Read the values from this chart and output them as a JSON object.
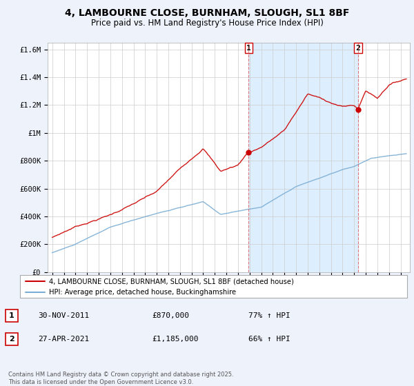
{
  "title_line1": "4, LAMBOURNE CLOSE, BURNHAM, SLOUGH, SL1 8BF",
  "title_line2": "Price paid vs. HM Land Registry's House Price Index (HPI)",
  "background_color": "#eef2fb",
  "plot_bg_color": "#ffffff",
  "red_color": "#cc0000",
  "blue_color": "#7aadd4",
  "shade_color": "#ddeeff",
  "marker1_yr": 2011.917,
  "marker1_price": 870000,
  "marker2_yr": 2021.333,
  "marker2_price": 1185000,
  "legend_line1": "4, LAMBOURNE CLOSE, BURNHAM, SLOUGH, SL1 8BF (detached house)",
  "legend_line2": "HPI: Average price, detached house, Buckinghamshire",
  "annotation1_date": "30-NOV-2011",
  "annotation1_price": "£870,000",
  "annotation1_hpi": "77% ↑ HPI",
  "annotation2_date": "27-APR-2021",
  "annotation2_price": "£1,185,000",
  "annotation2_hpi": "66% ↑ HPI",
  "footer": "Contains HM Land Registry data © Crown copyright and database right 2025.\nThis data is licensed under the Open Government Licence v3.0.",
  "ylim_max": 1650000,
  "yticks": [
    0,
    200000,
    400000,
    600000,
    800000,
    1000000,
    1200000,
    1400000,
    1600000
  ],
  "ytick_labels": [
    "£0",
    "£200K",
    "£400K",
    "£600K",
    "£800K",
    "£1M",
    "£1.2M",
    "£1.4M",
    "£1.6M"
  ],
  "xmin": 1995,
  "xmax": 2025
}
